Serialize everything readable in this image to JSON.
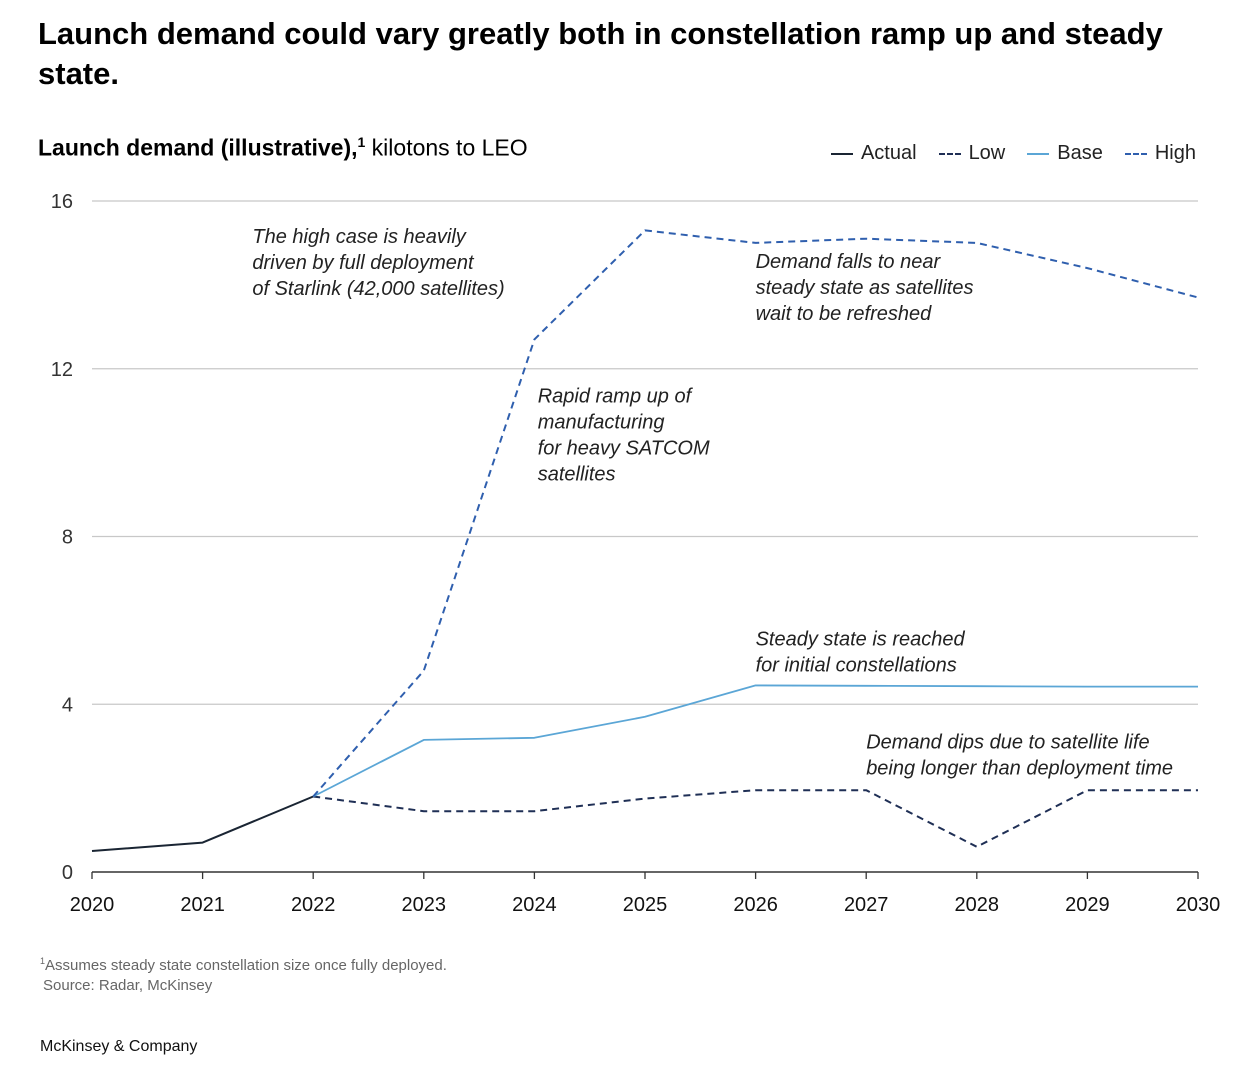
{
  "title": "Launch demand could vary greatly both in constellation ramp up and steady state.",
  "subtitle": {
    "bold": "Launch demand (illustrative),",
    "sup": "1",
    "rest": " kilotons to LEO"
  },
  "colors": {
    "actual": "#1a2533",
    "low": "#1f2f55",
    "base": "#5ba6d6",
    "high": "#2f5fae",
    "grid": "#c8c8c8",
    "axis": "#333333"
  },
  "chart_data": {
    "type": "line",
    "x": [
      2020,
      2021,
      2022,
      2023,
      2024,
      2025,
      2026,
      2027,
      2028,
      2029,
      2030
    ],
    "ylim": [
      0,
      16
    ],
    "yticks": [
      0,
      4,
      8,
      12,
      16
    ],
    "grid": true,
    "legend_position": "top-right",
    "series": [
      {
        "name": "Actual",
        "key": "actual",
        "style": "solid",
        "x": [
          2020,
          2021,
          2022
        ],
        "values": [
          0.5,
          0.7,
          1.8
        ]
      },
      {
        "name": "Low",
        "key": "low",
        "style": "dashed",
        "x": [
          2022,
          2023,
          2024,
          2025,
          2026,
          2027,
          2028,
          2029,
          2030
        ],
        "values": [
          1.8,
          1.45,
          1.45,
          1.75,
          1.95,
          1.95,
          0.6,
          1.95,
          1.95
        ]
      },
      {
        "name": "Base",
        "key": "base",
        "style": "solid",
        "x": [
          2022,
          2023,
          2024,
          2025,
          2026,
          2027,
          2028,
          2029,
          2030
        ],
        "values": [
          1.8,
          3.15,
          3.2,
          3.7,
          4.45,
          4.44,
          4.43,
          4.42,
          4.42
        ]
      },
      {
        "name": "High",
        "key": "high",
        "style": "dashed",
        "x": [
          2022,
          2023,
          2024,
          2025,
          2026,
          2027,
          2028,
          2029,
          2030
        ],
        "values": [
          1.8,
          4.8,
          12.7,
          15.3,
          15.0,
          15.1,
          15.0,
          14.4,
          13.7
        ]
      }
    ],
    "annotations": [
      {
        "lines": [
          "The high case is heavily",
          "driven by full deployment",
          "of Starlink (42,000 satellites)"
        ],
        "x": 2021.45,
        "y": 15.0
      },
      {
        "lines": [
          "Demand falls to near",
          "steady state as satellites",
          "wait to be refreshed"
        ],
        "x": 2026.0,
        "y": 14.4
      },
      {
        "lines": [
          "Rapid ramp up of",
          "manufacturing",
          "for heavy SATCOM",
          "satellites"
        ],
        "x": 2024.03,
        "y": 11.2
      },
      {
        "lines": [
          "Steady state is reached",
          "for initial constellations"
        ],
        "x": 2026.0,
        "y": 5.4
      },
      {
        "lines": [
          "Demand dips due to satellite life",
          "being longer than deployment time"
        ],
        "x": 2027.0,
        "y": 2.95
      }
    ]
  },
  "footnote": {
    "sup": "1",
    "line1": "Assumes steady state constellation size once fully deployed.",
    "line2": "Source: Radar, McKinsey"
  },
  "brand": "McKinsey & Company"
}
